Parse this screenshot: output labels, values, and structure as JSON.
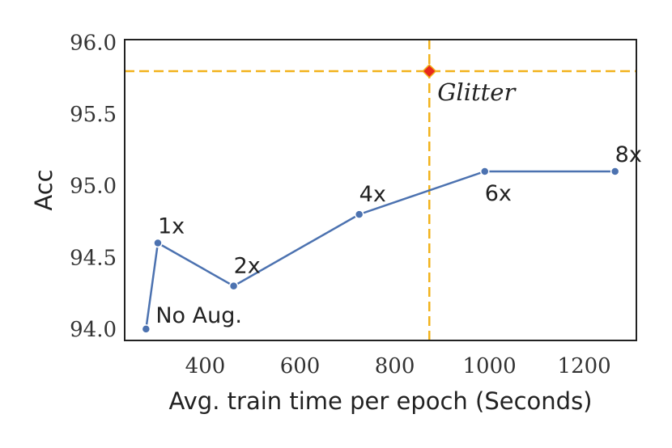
{
  "chart_data": {
    "type": "line",
    "xlabel": "Avg. train time per epoch (Seconds)",
    "ylabel": "Acc",
    "xlim": [
      230,
      1310
    ],
    "ylim": [
      93.92,
      96.02
    ],
    "xticks": [
      400,
      600,
      800,
      1000,
      1200
    ],
    "yticks": [
      94.0,
      94.5,
      95.0,
      95.5,
      96.0
    ],
    "xtick_labels": [
      "400",
      "600",
      "800",
      "1000",
      "1200"
    ],
    "ytick_labels": [
      "94.0",
      "94.5",
      "95.0",
      "95.5",
      "96.0"
    ],
    "grid": false,
    "series": [
      {
        "color": "#4c72b0",
        "points": [
          {
            "x": 275,
            "y": 94.0,
            "label": "No Aug."
          },
          {
            "x": 300,
            "y": 94.6,
            "label": "1x"
          },
          {
            "x": 460,
            "y": 94.3,
            "label": "2x"
          },
          {
            "x": 725,
            "y": 94.8,
            "label": "4x"
          },
          {
            "x": 990,
            "y": 95.1,
            "label": "6x"
          },
          {
            "x": 1265,
            "y": 95.1,
            "label": "8x"
          }
        ]
      }
    ],
    "highlight": {
      "x": 873,
      "y": 95.8,
      "label": "Glitter",
      "marker_color": "#e8281c",
      "line_color": "#f2b21b"
    }
  }
}
